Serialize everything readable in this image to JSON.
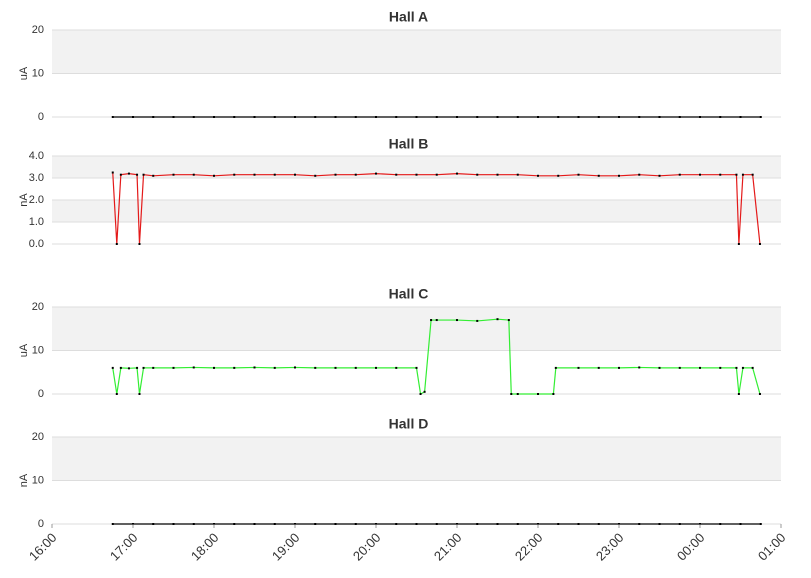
{
  "chart_data": [
    {
      "type": "line",
      "title": "Hall A",
      "y_label": "uA",
      "color": "#000000",
      "band_color": "#f2f2f2",
      "xlim": [
        16,
        25
      ],
      "ylim": [
        0,
        20
      ],
      "yticks": [
        0,
        10,
        20
      ],
      "x": [
        16.75,
        17,
        17.25,
        17.5,
        17.75,
        18,
        18.25,
        18.5,
        18.75,
        19,
        19.25,
        19.5,
        19.75,
        20,
        20.25,
        20.5,
        20.75,
        21,
        21.25,
        21.5,
        21.75,
        22,
        22.25,
        22.5,
        22.75,
        23,
        23.25,
        23.5,
        23.75,
        24,
        24.25,
        24.5,
        24.75
      ],
      "values": [
        0,
        0,
        0,
        0,
        0,
        0,
        0,
        0,
        0,
        0,
        0,
        0,
        0,
        0,
        0,
        0,
        0,
        0,
        0,
        0,
        0,
        0,
        0,
        0,
        0,
        0,
        0,
        0,
        0,
        0,
        0,
        0,
        0
      ]
    },
    {
      "type": "line",
      "title": "Hall B",
      "y_label": "nA",
      "color": "#e41a1a",
      "band_color": "#f2f2f2",
      "xlim": [
        16,
        25
      ],
      "ylim": [
        0,
        4
      ],
      "yticks": [
        {
          "value": 0,
          "label": "0.0"
        },
        {
          "value": 1,
          "label": "1.0"
        },
        {
          "value": 2,
          "label": "2.0"
        },
        {
          "value": 3,
          "label": "3.0"
        },
        {
          "value": 4,
          "label": "4.0"
        }
      ],
      "x": [
        16.75,
        16.8,
        16.85,
        16.95,
        17.05,
        17.08,
        17.13,
        17.25,
        17.5,
        17.75,
        18,
        18.25,
        18.5,
        18.75,
        19,
        19.25,
        19.5,
        19.75,
        20,
        20.25,
        20.5,
        20.75,
        21,
        21.25,
        21.5,
        21.75,
        22,
        22.25,
        22.5,
        22.75,
        23,
        23.25,
        23.5,
        23.75,
        24,
        24.25,
        24.45,
        24.48,
        24.53,
        24.65,
        24.74
      ],
      "values": [
        3.25,
        0,
        3.15,
        3.2,
        3.15,
        0,
        3.15,
        3.1,
        3.15,
        3.15,
        3.1,
        3.15,
        3.15,
        3.15,
        3.15,
        3.1,
        3.15,
        3.15,
        3.2,
        3.15,
        3.15,
        3.15,
        3.2,
        3.15,
        3.15,
        3.15,
        3.1,
        3.1,
        3.15,
        3.1,
        3.1,
        3.15,
        3.1,
        3.15,
        3.15,
        3.15,
        3.15,
        0,
        3.15,
        3.15,
        0
      ]
    },
    {
      "type": "line",
      "title": "Hall C",
      "y_label": "uA",
      "color": "#33ee33",
      "band_color": "#f2f2f2",
      "xlim": [
        16,
        25
      ],
      "ylim": [
        0,
        20
      ],
      "yticks": [
        0,
        10,
        20
      ],
      "x": [
        16.75,
        16.8,
        16.85,
        16.95,
        17.05,
        17.08,
        17.13,
        17.25,
        17.5,
        17.75,
        18,
        18.25,
        18.5,
        18.75,
        19,
        19.25,
        19.5,
        19.75,
        20,
        20.25,
        20.5,
        20.55,
        20.6,
        20.68,
        20.75,
        21,
        21.25,
        21.5,
        21.64,
        21.67,
        21.75,
        22,
        22.19,
        22.22,
        22.5,
        22.75,
        23,
        23.25,
        23.5,
        23.75,
        24,
        24.25,
        24.45,
        24.48,
        24.53,
        24.65,
        24.74
      ],
      "values": [
        6,
        0,
        6,
        5.9,
        6,
        0,
        6,
        6,
        6,
        6.1,
        6,
        6,
        6.1,
        6,
        6.1,
        6,
        6,
        6,
        6,
        6,
        6,
        0,
        0.5,
        17,
        17,
        17,
        16.8,
        17.2,
        17,
        0,
        0,
        0,
        0,
        6,
        6,
        6,
        6,
        6.1,
        6,
        6,
        6,
        6,
        6,
        0,
        6,
        6,
        0
      ]
    },
    {
      "type": "line",
      "title": "Hall D",
      "y_label": "nA",
      "color": "#000000",
      "band_color": "#f2f2f2",
      "xlim": [
        16,
        25
      ],
      "ylim": [
        0,
        20
      ],
      "yticks": [
        0,
        10,
        20
      ],
      "xticks": [
        {
          "value": 16,
          "label": "16:00"
        },
        {
          "value": 17,
          "label": "17:00"
        },
        {
          "value": 18,
          "label": "18:00"
        },
        {
          "value": 19,
          "label": "19:00"
        },
        {
          "value": 20,
          "label": "20:00"
        },
        {
          "value": 21,
          "label": "21:00"
        },
        {
          "value": 22,
          "label": "22:00"
        },
        {
          "value": 23,
          "label": "23:00"
        },
        {
          "value": 24,
          "label": "00:00"
        },
        {
          "value": 25,
          "label": "01:00"
        }
      ],
      "x": [
        16.75,
        17,
        17.25,
        17.5,
        17.75,
        18,
        18.25,
        18.5,
        18.75,
        19,
        19.25,
        19.5,
        19.75,
        20,
        20.25,
        20.5,
        20.75,
        21,
        21.25,
        21.5,
        21.75,
        22,
        22.25,
        22.5,
        22.75,
        23,
        23.25,
        23.5,
        23.75,
        24,
        24.25,
        24.5,
        24.75
      ],
      "values": [
        0,
        0,
        0,
        0,
        0,
        0,
        0,
        0,
        0,
        0,
        0,
        0,
        0,
        0,
        0,
        0,
        0,
        0,
        0,
        0,
        0,
        0,
        0,
        0,
        0,
        0,
        0,
        0,
        0,
        0,
        0,
        0,
        0
      ]
    }
  ]
}
